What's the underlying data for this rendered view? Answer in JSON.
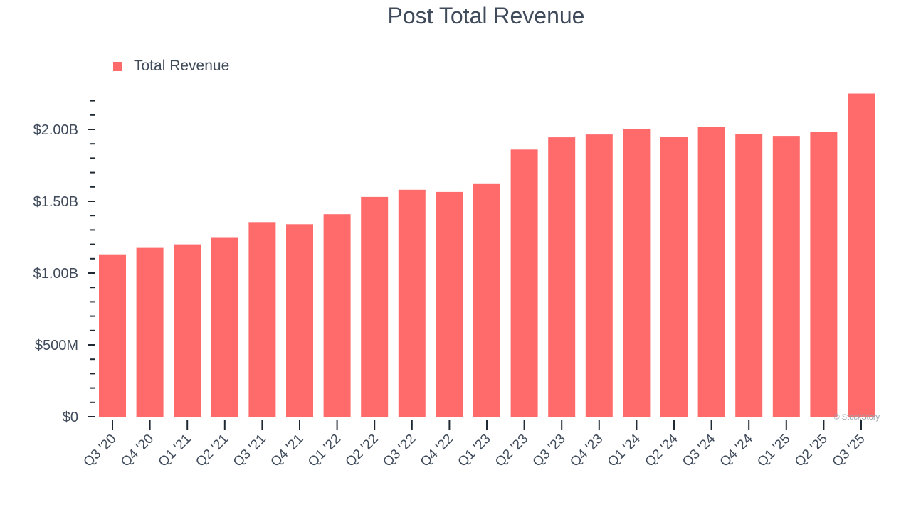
{
  "chart_data": {
    "type": "bar",
    "title": "Post Total Revenue",
    "xlabel": "",
    "ylabel": "",
    "legend": {
      "placement": "top-left",
      "entries": [
        "Total Revenue"
      ]
    },
    "grid": false,
    "ylim": [
      0,
      2200000000
    ],
    "yticks": [
      {
        "value": 0,
        "label": "$0"
      },
      {
        "value": 500000000,
        "label": "$500M"
      },
      {
        "value": 1000000000,
        "label": "$1.00B"
      },
      {
        "value": 1500000000,
        "label": "$1.50B"
      },
      {
        "value": 2000000000,
        "label": "$2.00B"
      }
    ],
    "categories": [
      "Q3 '20",
      "Q4 '20",
      "Q1 '21",
      "Q2 '21",
      "Q3 '21",
      "Q4 '21",
      "Q1 '22",
      "Q2 '22",
      "Q3 '22",
      "Q4 '22",
      "Q1 '23",
      "Q2 '23",
      "Q3 '23",
      "Q4 '23",
      "Q1 '24",
      "Q2 '24",
      "Q3 '24",
      "Q4 '24",
      "Q1 '25",
      "Q2 '25",
      "Q3 '25"
    ],
    "series": [
      {
        "name": "Total Revenue",
        "color": "#ff6b6b",
        "values": [
          1130000000,
          1175000000,
          1200000000,
          1250000000,
          1355000000,
          1340000000,
          1410000000,
          1530000000,
          1580000000,
          1565000000,
          1620000000,
          1860000000,
          1945000000,
          1965000000,
          2000000000,
          1950000000,
          2015000000,
          1970000000,
          1955000000,
          1985000000,
          2250000000
        ]
      }
    ],
    "watermark": "© StockStory"
  }
}
